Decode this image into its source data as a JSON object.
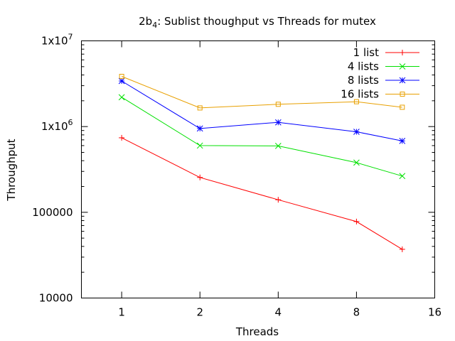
{
  "chart_data": {
    "type": "line",
    "title": "2b",
    "title_subscript": "4",
    "title_rest": ": Sublist thoughput vs Threads for mutex",
    "xlabel": "Threads",
    "ylabel": "Throughput",
    "x_scale": "log2",
    "y_scale": "log10",
    "xlim": [
      0.7,
      16
    ],
    "ylim": [
      10000,
      10000000
    ],
    "x_ticks": [
      {
        "value": 1,
        "label": "1"
      },
      {
        "value": 2,
        "label": "2"
      },
      {
        "value": 4,
        "label": "4"
      },
      {
        "value": 8,
        "label": "8"
      },
      {
        "value": 16,
        "label": "16"
      }
    ],
    "y_ticks": [
      {
        "value": 10000,
        "label": "10000"
      },
      {
        "value": 100000,
        "label": "100000"
      },
      {
        "value": 1000000,
        "label": "1x10",
        "sup": "6"
      },
      {
        "value": 10000000,
        "label": "1x10",
        "sup": "7"
      }
    ],
    "legend_position": "top-right",
    "grid": false,
    "series": [
      {
        "name": "1 list",
        "color": "#ff0000",
        "marker": "plus",
        "x": [
          1,
          2,
          4,
          8,
          12
        ],
        "y": [
          740000,
          255000,
          140000,
          78000,
          37000
        ]
      },
      {
        "name": "4 lists",
        "color": "#00e000",
        "marker": "cross",
        "x": [
          1,
          2,
          4,
          8,
          12
        ],
        "y": [
          2200000,
          600000,
          595000,
          380000,
          265000
        ]
      },
      {
        "name": "8 lists",
        "color": "#0000ff",
        "marker": "star",
        "x": [
          1,
          2,
          4,
          8,
          12
        ],
        "y": [
          3400000,
          950000,
          1120000,
          870000,
          680000
        ]
      },
      {
        "name": "16 lists",
        "color": "#e8a000",
        "marker": "square",
        "x": [
          1,
          2,
          4,
          8,
          12
        ],
        "y": [
          3850000,
          1650000,
          1820000,
          1950000,
          1680000
        ]
      }
    ]
  }
}
